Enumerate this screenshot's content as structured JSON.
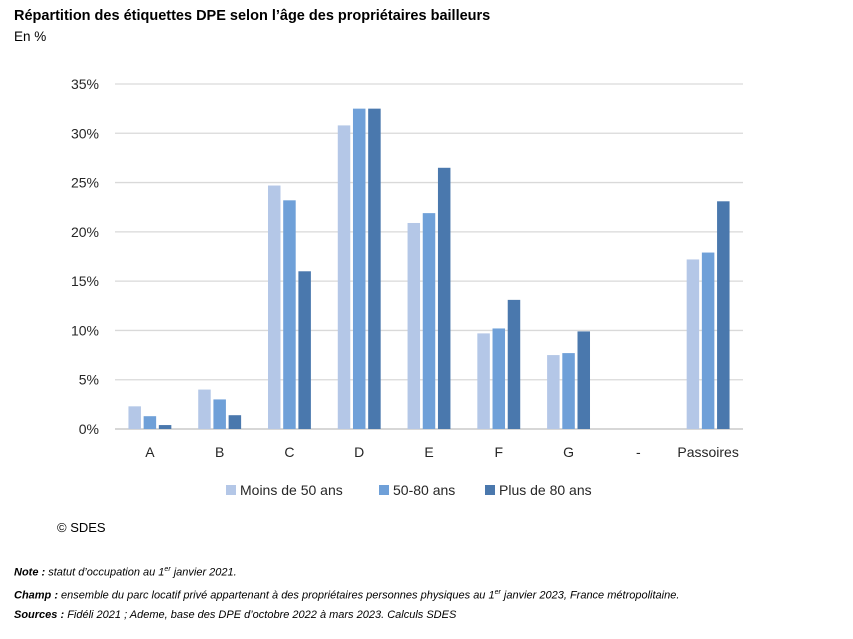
{
  "title": "Répartition des étiquettes DPE selon l’âge des propriétaires bailleurs",
  "subtitle": "En %",
  "colors": {
    "series": [
      "#b4c7e7",
      "#6fa0d8",
      "#4a78ad"
    ],
    "grid": "#d9d9d9",
    "axis": "#bfbfbf"
  },
  "chart_data": {
    "type": "bar",
    "categories": [
      "A",
      "B",
      "C",
      "D",
      "E",
      "F",
      "G",
      "-",
      "Passoires"
    ],
    "series": [
      {
        "name": "Moins de 50 ans",
        "values": [
          2.3,
          4.0,
          24.7,
          30.8,
          20.9,
          9.7,
          7.5,
          0,
          17.2
        ]
      },
      {
        "name": "50-80 ans",
        "values": [
          1.3,
          3.0,
          23.2,
          32.5,
          21.9,
          10.2,
          7.7,
          0,
          17.9
        ]
      },
      {
        "name": "Plus de 80 ans",
        "values": [
          0.4,
          1.4,
          16.0,
          32.5,
          26.5,
          13.1,
          9.9,
          0,
          23.1
        ]
      }
    ],
    "yticks": [
      "0%",
      "5%",
      "10%",
      "15%",
      "20%",
      "25%",
      "30%",
      "35%"
    ],
    "ylim": [
      0,
      35
    ],
    "xlabel": "",
    "ylabel": "",
    "legend": "bottom"
  },
  "copyright": "© SDES",
  "notes": {
    "note_label": "Note :",
    "note_text_a": " statut d’occupation au 1",
    "note_sup": "er",
    "note_text_b": " janvier 2021.",
    "champ_label": "Champ :",
    "champ_text_a": " ensemble du parc locatif privé appartenant à des propriétaires personnes physiques au 1",
    "champ_sup": "er",
    "champ_text_b": " janvier 2023, France métropolitaine.",
    "sources_label": "Sources :",
    "sources_text": " Fidéli 2021 ; Ademe, base des DPE d’octobre 2022 à mars 2023. Calculs SDES"
  }
}
